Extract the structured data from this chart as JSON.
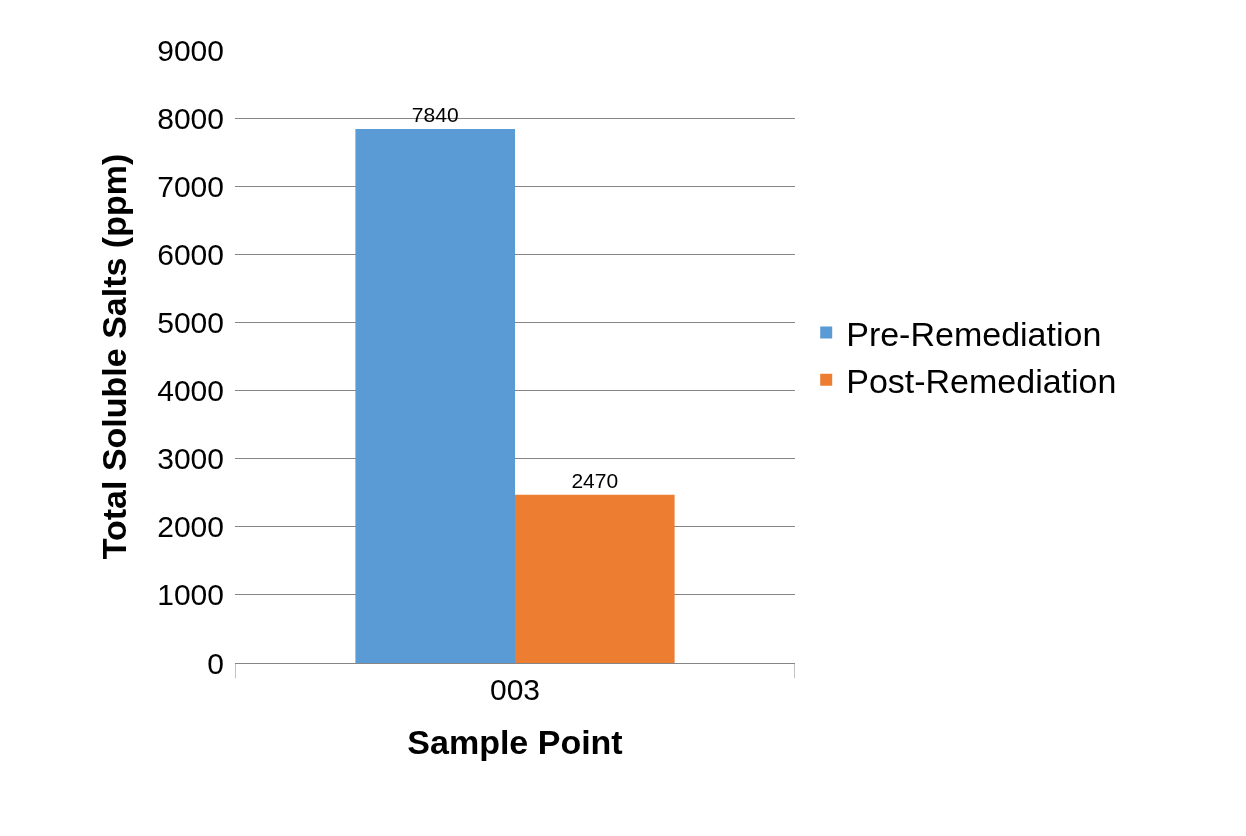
{
  "chart_data": {
    "type": "bar",
    "xlabel": "Sample Point",
    "ylabel": "Total Soluble Salts (ppm)",
    "categories": [
      "003"
    ],
    "series": [
      {
        "name": "Pre-Remediation",
        "color": "#5b9bd5",
        "values": [
          7840
        ]
      },
      {
        "name": "Post-Remediation",
        "color": "#ed7d31",
        "values": [
          2470
        ]
      }
    ],
    "ylim": [
      0,
      9000
    ],
    "yticks": [
      0,
      1000,
      2000,
      3000,
      4000,
      5000,
      6000,
      7000,
      8000,
      9000
    ],
    "grid": "y",
    "legend": "right",
    "data_labels": true
  }
}
